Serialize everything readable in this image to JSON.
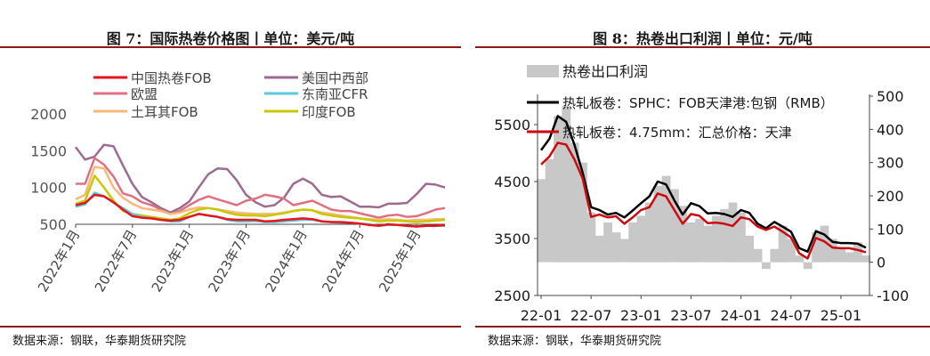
{
  "left": {
    "title": "图 7：国际热卷价格图丨单位：美元/吨",
    "source": "数据来源：钢联，华泰期货研究院",
    "chart_data": {
      "type": "line",
      "title": "",
      "xlabel": "",
      "ylabel": "",
      "ylim": [
        500,
        2000
      ],
      "yticks": [
        "2000",
        "1500",
        "1000",
        "500"
      ],
      "ytick_values": [
        2000,
        1500,
        1000,
        500
      ],
      "xticks": [
        "2022年1月",
        "2022年7月",
        "2023年1月",
        "2023年7月",
        "2024年1月",
        "2024年7月",
        "2025年1月"
      ],
      "grid": false,
      "legend": "top",
      "x": [
        "2022-01",
        "2022-02",
        "2022-03",
        "2022-04",
        "2022-05",
        "2022-06",
        "2022-07",
        "2022-08",
        "2022-09",
        "2022-10",
        "2022-11",
        "2022-12",
        "2023-01",
        "2023-02",
        "2023-03",
        "2023-04",
        "2023-05",
        "2023-06",
        "2023-07",
        "2023-08",
        "2023-09",
        "2023-10",
        "2023-11",
        "2023-12",
        "2024-01",
        "2024-02",
        "2024-03",
        "2024-04",
        "2024-05",
        "2024-06",
        "2024-07",
        "2024-08",
        "2024-09",
        "2024-10",
        "2024-11",
        "2024-12",
        "2025-01",
        "2025-02",
        "2025-03",
        "2025-04"
      ],
      "series": [
        {
          "name": "中国热卷FOB",
          "color": "#e8141c",
          "values": [
            760,
            790,
            900,
            880,
            800,
            700,
            610,
            590,
            580,
            560,
            550,
            560,
            600,
            640,
            620,
            600,
            570,
            560,
            560,
            560,
            540,
            545,
            560,
            570,
            580,
            570,
            540,
            530,
            530,
            520,
            510,
            490,
            480,
            500,
            490,
            480,
            470,
            480,
            480,
            490
          ]
        },
        {
          "name": "美国中西部",
          "color": "#9c6b8f",
          "values": [
            1550,
            1380,
            1420,
            1580,
            1560,
            1300,
            1050,
            870,
            800,
            720,
            660,
            720,
            810,
            1000,
            1180,
            1260,
            1250,
            1100,
            900,
            800,
            740,
            760,
            860,
            1050,
            1120,
            1050,
            900,
            870,
            880,
            810,
            740,
            740,
            730,
            780,
            780,
            790,
            910,
            1050,
            1040,
            1000
          ]
        },
        {
          "name": "欧盟",
          "color": "#e07080",
          "values": [
            1050,
            1050,
            1400,
            1310,
            1150,
            920,
            880,
            800,
            760,
            700,
            640,
            680,
            760,
            830,
            880,
            840,
            800,
            760,
            820,
            850,
            900,
            880,
            850,
            760,
            790,
            820,
            760,
            700,
            680,
            680,
            650,
            620,
            590,
            620,
            630,
            600,
            610,
            650,
            700,
            720
          ]
        },
        {
          "name": "东南亚CFR",
          "color": "#5bc8e0",
          "values": [
            740,
            770,
            930,
            880,
            790,
            720,
            640,
            600,
            580,
            560,
            540,
            540,
            600,
            640,
            620,
            600,
            560,
            540,
            540,
            545,
            530,
            530,
            540,
            550,
            560,
            560,
            540,
            530,
            520,
            520,
            510,
            500,
            480,
            490,
            490,
            480,
            470,
            480,
            480,
            480
          ]
        },
        {
          "name": "土耳其FOB",
          "color": "#f8b878",
          "values": [
            840,
            900,
            1280,
            1260,
            1000,
            860,
            780,
            720,
            700,
            680,
            640,
            660,
            700,
            730,
            720,
            700,
            680,
            660,
            650,
            640,
            640,
            640,
            660,
            680,
            700,
            690,
            660,
            640,
            620,
            600,
            580,
            570,
            560,
            570,
            560,
            550,
            560,
            560,
            570,
            570
          ]
        },
        {
          "name": "印度FOB",
          "color": "#c8c800",
          "values": [
            780,
            820,
            1160,
            1000,
            820,
            680,
            640,
            620,
            600,
            580,
            560,
            580,
            650,
            700,
            720,
            700,
            660,
            630,
            620,
            620,
            610,
            630,
            650,
            680,
            700,
            690,
            640,
            620,
            600,
            590,
            580,
            560,
            540,
            550,
            550,
            540,
            530,
            540,
            550,
            560
          ]
        }
      ]
    }
  },
  "right": {
    "title": "图 8：热卷出口利润丨单位：元/吨",
    "source": "数据来源：钢联，华泰期货研究院",
    "chart_data": {
      "type": "line",
      "title": "",
      "xlabel": "",
      "ylabel": "",
      "ylim": [
        2500,
        6000
      ],
      "y2lim": [
        -100,
        500
      ],
      "yticks": [
        "5500",
        "4500",
        "3500",
        "2500"
      ],
      "ytick_values": [
        5500,
        4500,
        3500,
        2500
      ],
      "y2ticks": [
        "500",
        "400",
        "300",
        "200",
        "100",
        "0",
        "-100"
      ],
      "y2tick_values": [
        500,
        400,
        300,
        200,
        100,
        0,
        -100
      ],
      "xticks": [
        "22-01",
        "22-07",
        "23-01",
        "23-07",
        "24-01",
        "24-07",
        "25-01"
      ],
      "grid": false,
      "legend": "top-left",
      "x": [
        "2022-01",
        "2022-02",
        "2022-03",
        "2022-04",
        "2022-05",
        "2022-06",
        "2022-07",
        "2022-08",
        "2022-09",
        "2022-10",
        "2022-11",
        "2022-12",
        "2023-01",
        "2023-02",
        "2023-03",
        "2023-04",
        "2023-05",
        "2023-06",
        "2023-07",
        "2023-08",
        "2023-09",
        "2023-10",
        "2023-11",
        "2023-12",
        "2024-01",
        "2024-02",
        "2024-03",
        "2024-04",
        "2024-05",
        "2024-06",
        "2024-07",
        "2024-08",
        "2024-09",
        "2024-10",
        "2024-11",
        "2024-12",
        "2025-01",
        "2025-02",
        "2025-03",
        "2025-04"
      ],
      "bars": {
        "name": "热卷出口利润",
        "color": "#c8c8c8",
        "axis": "right",
        "values": [
          250,
          310,
          440,
          470,
          360,
          300,
          150,
          80,
          120,
          90,
          70,
          120,
          140,
          180,
          230,
          260,
          220,
          170,
          120,
          130,
          110,
          140,
          160,
          180,
          150,
          80,
          40,
          -20,
          40,
          110,
          70,
          20,
          -20,
          90,
          110,
          70,
          40,
          30,
          60,
          20
        ]
      },
      "series": [
        {
          "name": "热轧板卷：SPHC：FOB天津港:包钢（RMB）",
          "color": "#000000",
          "axis": "left",
          "values": [
            5050,
            5250,
            5650,
            5550,
            5150,
            4650,
            4050,
            4000,
            3920,
            3950,
            3870,
            3990,
            4120,
            4240,
            4500,
            4450,
            4170,
            3920,
            4120,
            4070,
            3940,
            3950,
            3930,
            3880,
            4000,
            3950,
            3760,
            3680,
            3790,
            3710,
            3620,
            3330,
            3270,
            3630,
            3570,
            3440,
            3420,
            3420,
            3410,
            3340
          ]
        },
        {
          "name": "热轧板卷：4.75mm：汇总价格：天津",
          "color": "#cc0a10",
          "axis": "left",
          "values": [
            4800,
            4940,
            5180,
            5150,
            4890,
            4550,
            3880,
            3920,
            3870,
            3890,
            3760,
            3870,
            4000,
            4050,
            4290,
            4240,
            4000,
            3760,
            3930,
            3900,
            3770,
            3780,
            3760,
            3720,
            3870,
            3840,
            3710,
            3650,
            3710,
            3620,
            3520,
            3240,
            3150,
            3510,
            3450,
            3340,
            3330,
            3330,
            3300,
            3260
          ]
        }
      ]
    }
  }
}
